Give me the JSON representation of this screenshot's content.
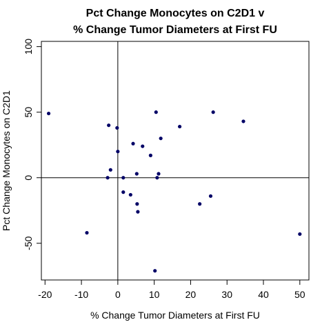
{
  "chart_data": {
    "type": "scatter",
    "title_lines": [
      "Pct Change Monocytes on C2D1 v",
      "% Change Tumor Diameters at First FU"
    ],
    "xlabel": "% Change Tumor Diameters at First FU",
    "ylabel": "Pct Change Monocytes on C2D1",
    "xlim": [
      -21,
      52.5
    ],
    "ylim": [
      -78,
      104
    ],
    "xticks": [
      -20,
      -10,
      0,
      10,
      20,
      30,
      40,
      50
    ],
    "yticks": [
      -50,
      0,
      50,
      100
    ],
    "reference_lines": {
      "x": 0,
      "y": 0
    },
    "grid": false,
    "point_color": "#000066",
    "points": [
      {
        "x": -19,
        "y": 49
      },
      {
        "x": -8.5,
        "y": -42
      },
      {
        "x": -2.5,
        "y": 40
      },
      {
        "x": -2.8,
        "y": 0
      },
      {
        "x": -2,
        "y": 6
      },
      {
        "x": -0.2,
        "y": 38
      },
      {
        "x": 0,
        "y": 20
      },
      {
        "x": 1.5,
        "y": 0
      },
      {
        "x": 1.5,
        "y": -11
      },
      {
        "x": 3.5,
        "y": -13
      },
      {
        "x": 4.2,
        "y": 26
      },
      {
        "x": 5.2,
        "y": 3
      },
      {
        "x": 5.3,
        "y": -20
      },
      {
        "x": 5.5,
        "y": -26
      },
      {
        "x": 6.8,
        "y": 24
      },
      {
        "x": 9,
        "y": 17
      },
      {
        "x": 10.2,
        "y": -71
      },
      {
        "x": 10.5,
        "y": 50
      },
      {
        "x": 10.8,
        "y": 0
      },
      {
        "x": 11.2,
        "y": 3
      },
      {
        "x": 11.8,
        "y": 30
      },
      {
        "x": 17,
        "y": 39
      },
      {
        "x": 22.5,
        "y": -20
      },
      {
        "x": 25.5,
        "y": -14
      },
      {
        "x": 26.2,
        "y": 50
      },
      {
        "x": 34.5,
        "y": 43
      },
      {
        "x": 50,
        "y": -43
      }
    ]
  }
}
